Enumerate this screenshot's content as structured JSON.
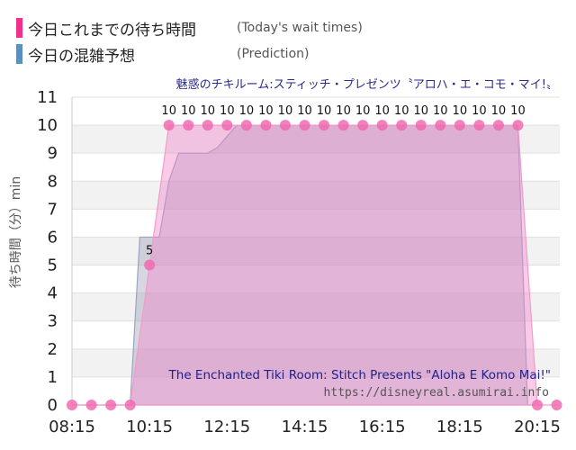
{
  "legend": {
    "today": {
      "label": "今日これまでの待ち時間",
      "sub": "(Today's wait times)",
      "color": "#f0308c"
    },
    "prediction": {
      "label": "今日の混雑予想",
      "sub": "(Prediction)",
      "color": "#5b8fc0"
    }
  },
  "chart_data": {
    "type": "area",
    "title": "魅惑のチキルーム:スティッチ・プレゼンツ〝アロハ・エ・コモ・マイ!〟",
    "subtitle": "The Enchanted Tiki Room: Stitch Presents \"Aloha E Komo Mai!\"",
    "source": "https://disneyreal.asumirai.info",
    "ylabel": "待ち時間（分）min",
    "xlabel": "",
    "ylim": [
      0,
      11
    ],
    "yticks": [
      "0",
      "1",
      "2",
      "3",
      "4",
      "5",
      "6",
      "7",
      "8",
      "9",
      "10",
      "11"
    ],
    "xticks": [
      "08:15",
      "10:15",
      "12:15",
      "14:15",
      "16:15",
      "18:15",
      "20:15"
    ],
    "grid": "horizontal",
    "series": [
      {
        "key": "today",
        "color": "#f06bb0",
        "x": [
          "08:15",
          "08:45",
          "09:15",
          "09:45",
          "10:15",
          "10:45",
          "11:15",
          "11:45",
          "12:15",
          "12:45",
          "13:15",
          "13:45",
          "14:15",
          "14:45",
          "15:15",
          "15:45",
          "16:15",
          "16:45",
          "17:15",
          "17:45",
          "18:15",
          "18:45",
          "19:15",
          "19:45",
          "20:15",
          "20:45"
        ],
        "values": [
          0,
          0,
          0,
          0,
          5,
          10,
          10,
          10,
          10,
          10,
          10,
          10,
          10,
          10,
          10,
          10,
          10,
          10,
          10,
          10,
          10,
          10,
          10,
          10,
          0,
          0
        ],
        "labels": [
          "",
          "",
          "",
          "",
          "5",
          "10",
          "10",
          "10",
          "10",
          "10",
          "10",
          "10",
          "10",
          "10",
          "10",
          "10",
          "10",
          "10",
          "10",
          "10",
          "10",
          "10",
          "10",
          "10",
          "",
          ""
        ]
      },
      {
        "key": "prediction",
        "color": "#8aa4c8",
        "x": [
          "08:15",
          "08:45",
          "09:15",
          "09:45",
          "10:00",
          "10:30",
          "10:45",
          "11:00",
          "11:15",
          "11:30",
          "11:45",
          "12:00",
          "12:30",
          "13:00",
          "19:45",
          "20:00",
          "20:15"
        ],
        "values": [
          0,
          0,
          0,
          0,
          6,
          6,
          8,
          9,
          9,
          9,
          9,
          9.2,
          10,
          10,
          10,
          0,
          0
        ]
      }
    ]
  }
}
